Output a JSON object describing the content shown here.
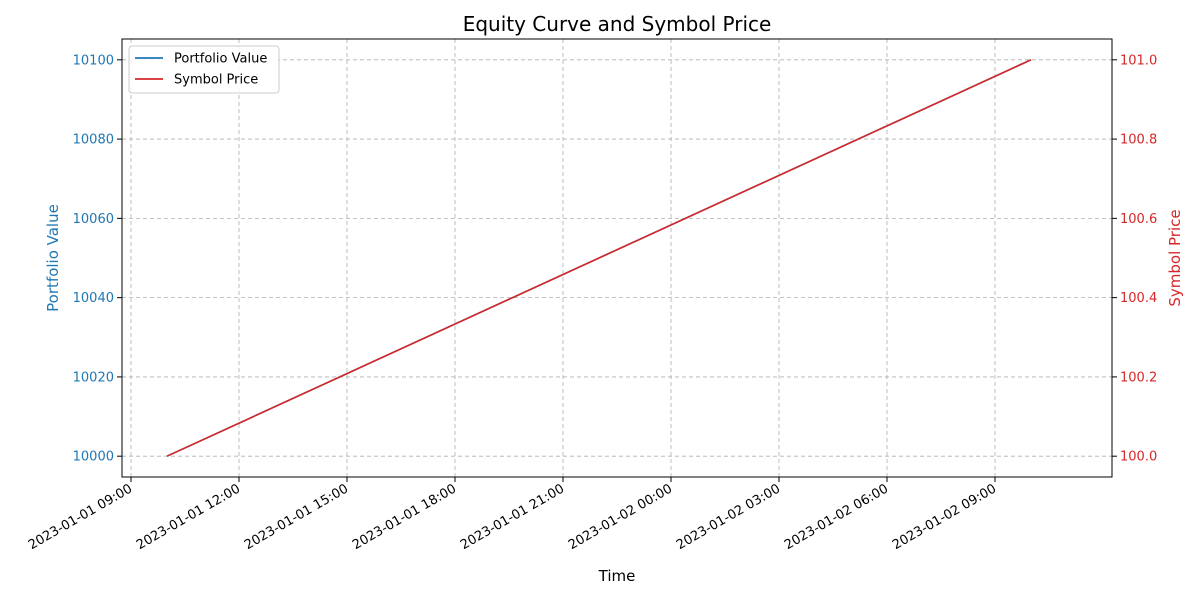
{
  "chart_data": {
    "type": "line",
    "title": "Equity Curve and Symbol Price",
    "xlabel": "Time",
    "ylabel_left": "Portfolio Value",
    "ylabel_right": "Symbol Price",
    "x_range": [
      "2023-01-01 08:45",
      "2023-01-02 12:15"
    ],
    "ylim_left": [
      9994.75,
      10105.25
    ],
    "ylim_right": [
      99.9475,
      101.0525
    ],
    "x_ticks": [
      "2023-01-01 09:00",
      "2023-01-01 12:00",
      "2023-01-01 15:00",
      "2023-01-01 18:00",
      "2023-01-01 21:00",
      "2023-01-02 00:00",
      "2023-01-02 03:00",
      "2023-01-02 06:00",
      "2023-01-02 09:00"
    ],
    "y_ticks_left": [
      10000,
      10020,
      10040,
      10060,
      10080,
      10100
    ],
    "y_ticks_right": [
      "100.0",
      "100.2",
      "100.4",
      "100.6",
      "100.8",
      "101.0"
    ],
    "grid": true,
    "legend_position": "top-left",
    "series": [
      {
        "name": "Portfolio Value",
        "axis": "left",
        "color": "#1f77b4",
        "x": [
          "2023-01-01 10:00",
          "2023-01-02 10:00"
        ],
        "y": [
          10000,
          10100
        ]
      },
      {
        "name": "Symbol Price",
        "axis": "right",
        "color": "#d62728",
        "x": [
          "2023-01-01 10:00",
          "2023-01-02 10:00"
        ],
        "y": [
          100.0,
          101.0
        ]
      }
    ],
    "left_axis_color": "#1f77b4",
    "right_axis_color": "#d62728"
  }
}
